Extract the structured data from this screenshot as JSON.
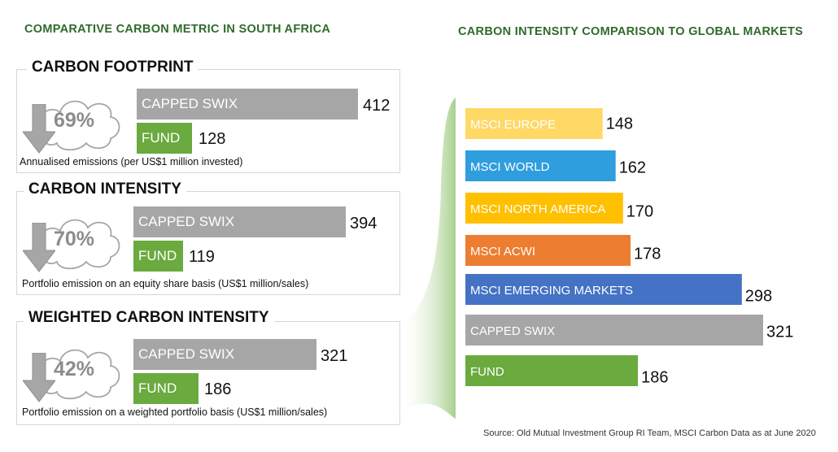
{
  "left_title": "COMPARATIVE CARBON METRIC IN SOUTH AFRICA",
  "right_title": "CARBON INTENSITY COMPARISON TO GLOBAL MARKETS",
  "source": "Source: Old Mutual Investment Group RI Team, MSCI Carbon Data as at June 2020",
  "colors": {
    "gray": "#a6a6a6",
    "green": "#6aaa3e",
    "title_green": "#2f6b2a"
  },
  "panels": [
    {
      "title": "CARBON FOOTPRINT",
      "reduction": "69%",
      "note": "Annualised emissions (per US$1 million invested)",
      "bars": [
        {
          "label": "CAPPED SWIX",
          "value": 412
        },
        {
          "label": "FUND",
          "value": 128
        }
      ]
    },
    {
      "title": "CARBON INTENSITY",
      "reduction": "70%",
      "note": "Portfolio emission on an equity share basis (US$1 million/sales)",
      "bars": [
        {
          "label": "CAPPED SWIX",
          "value": 394
        },
        {
          "label": "FUND",
          "value": 119
        }
      ]
    },
    {
      "title": "WEIGHTED CARBON INTENSITY",
      "reduction": "42%",
      "note": "Portfolio emission on a weighted portfolio basis (US$1 million/sales)",
      "bars": [
        {
          "label": "CAPPED SWIX",
          "value": 321
        },
        {
          "label": "FUND",
          "value": 186
        }
      ]
    }
  ],
  "chart_data": {
    "type": "bar",
    "orientation": "horizontal",
    "title": "CARBON INTENSITY COMPARISON TO GLOBAL MARKETS",
    "categories": [
      "MSCI EUROPE",
      "MSCI WORLD",
      "MSCI NORTH AMERICA",
      "MSCI ACWI",
      "MSCI EMERGING MARKETS",
      "CAPPED SWIX",
      "FUND"
    ],
    "values": [
      148,
      162,
      170,
      178,
      298,
      321,
      186
    ],
    "colors": [
      "#ffd966",
      "#2e9ede",
      "#ffc000",
      "#ed7d31",
      "#4472c4",
      "#a6a6a6",
      "#6aaa3e"
    ],
    "xlim": [
      0,
      330
    ]
  }
}
